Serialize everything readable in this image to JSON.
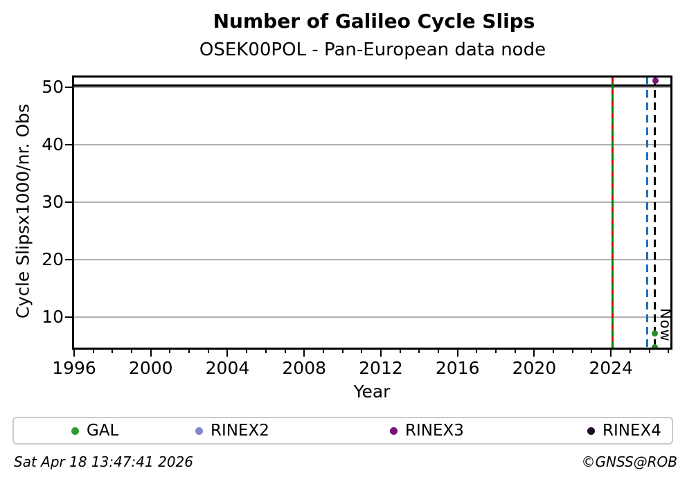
{
  "chart_data": {
    "type": "scatter",
    "title": "Number of Galileo Cycle Slips",
    "subtitle": "OSEK00POL - Pan-European data node",
    "xlabel": "Year",
    "ylabel": "Cycle Slipsx1000/nr. Obs",
    "xlim": [
      1996,
      2027.1
    ],
    "ylim": [
      4.7,
      51.7
    ],
    "x_major_ticks": [
      1996,
      2000,
      2004,
      2008,
      2012,
      2016,
      2020,
      2024
    ],
    "x_minor_tick_step_years": 1,
    "y_ticks": [
      10,
      20,
      30,
      40,
      50
    ],
    "grid": {
      "horizontal": true,
      "color": "#b0b0b0"
    },
    "hlines": [
      {
        "y": 50.3,
        "color": "#000000",
        "style": "solid",
        "note": "black line spanning full width near top"
      }
    ],
    "vlines": [
      {
        "x": 2024.07,
        "color": "#008000",
        "style": "solid"
      },
      {
        "x": 2024.07,
        "color": "#dd0000",
        "style": "dashed-short",
        "note": "red dashes overlaid on green line"
      },
      {
        "x": 2025.9,
        "color": "#1a6fc0",
        "style": "dashed"
      },
      {
        "x": 2026.3,
        "color": "#000000",
        "style": "dashed",
        "label": "Now"
      }
    ],
    "now_label": "Now",
    "points": [
      {
        "series": "RINEX3",
        "x": 2026.32,
        "y": 51.1,
        "color": "#7a117a"
      },
      {
        "series": "GAL",
        "x": 2026.28,
        "y": 7.2,
        "color": "#2e8b2e"
      },
      {
        "series": "GAL",
        "x": 2026.28,
        "y": 4.8,
        "color": "#2e8b2e",
        "note": "clipped at bottom axis"
      }
    ],
    "legend": [
      {
        "label": "GAL",
        "color": "#2e9b2e"
      },
      {
        "label": "RINEX2",
        "color": "#8487c9"
      },
      {
        "label": "RINEX3",
        "color": "#7a117a"
      },
      {
        "label": "RINEX4",
        "color": "#200a26"
      }
    ],
    "legend_position": "bottom full-width, 4 columns"
  },
  "footer": {
    "timestamp": "Sat Apr 18 13:47:41 2026",
    "copyright": "©GNSS@ROB"
  }
}
